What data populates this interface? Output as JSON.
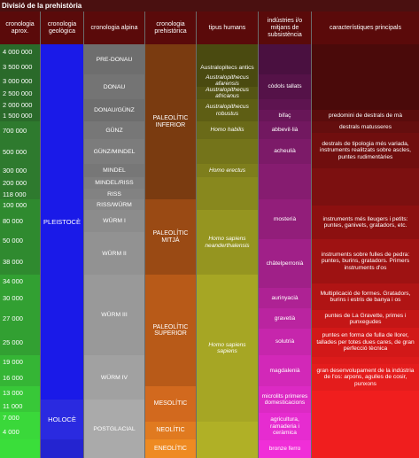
{
  "title": "Divisió de la prehistòria",
  "headers": {
    "aprox": "cronologia aprox.",
    "geologica": "cronologia geològica",
    "alpina": "cronologia alpina",
    "prehistorica": "cronologia prehistòrica",
    "humans": "tipus humans",
    "industries": "indústries i/o mitjans de subsistència",
    "caracteristiques": "característiques principals"
  },
  "dates": [
    "4 000 000",
    "3 500 000",
    "3 000 000",
    "2 500 000",
    "2 000 000",
    "1 500 000",
    "700 000",
    "500 000",
    "300 000",
    "200 000",
    "118 000",
    "100 000",
    "80 000",
    "50 000",
    "38 000",
    "34 000",
    "30 000",
    "27 000",
    "25 000",
    "19 000",
    "16 000",
    "13 000",
    "11 000",
    "7 000",
    "4 000"
  ],
  "geologica": {
    "pleistoce": "PLEISTOCÈ",
    "holoce": "HOLOCÈ"
  },
  "alpina": {
    "predonau": "PRE-DONAU",
    "donau": "DONAU",
    "donau_gunz": "DONAU/GÜNZ",
    "gunz": "GÜNZ",
    "gunz_mindel": "GÜNZ/MINDEL",
    "mindel": "MINDEL",
    "mindel_riss": "MINDEL/RISS",
    "riss": "RISS",
    "riss_wurm": "RISS/WÜRM",
    "wurm1": "WÜRM I",
    "wurm2": "WÜRM II",
    "wurm3": "WÜRM III",
    "wurm4": "WÜRM IV",
    "postglacial": "POSTGLACIAL"
  },
  "prehistorica": {
    "inferior": "PALEOLÍTIC INFERIOR",
    "mitja": "PALEOLÍTIC MITJÀ",
    "superior": "PALEOLÍTIC SUPERIOR",
    "mesolitic": "MESOLÍTIC",
    "neolitic": "NEOLÍTIC",
    "eneolitic": "ENEOLÍTIC"
  },
  "humans": {
    "antics_1": "Australopitecs antics",
    "antics_2": "Australopithecus afarensis",
    "africanus": "Australopithecus africanus",
    "robustus": "Australopithecus robustus",
    "habilis": "Homo habilis",
    "erectus": "Homo erectus",
    "neander": "Homo sapiens neanderthalensis",
    "sapiens": "Homo sapiens sapiens"
  },
  "industries": {
    "codols": "còdols tallats",
    "bifac": "bifaç",
    "abbevil": "abbevil·lià",
    "acheulia": "acheulià",
    "mosteria": "mosterià",
    "chatel": "châtelperronià",
    "aurinya": "aurinyacià",
    "graveta": "gravetià",
    "solutria": "solutrià",
    "magdalenia": "magdalenià",
    "microlits": "microlits primeres domesticacions",
    "agricultura": "agricultura, ramaderia i ceràmica",
    "bronze": "bronze ferro"
  },
  "caracteristiques": {
    "c1": "predomini de destrals de mà",
    "c2": "destrals matusseres",
    "c3": "destrals de tipologia més variada, instruments realitzats sobre ascles, puntes rudimentàries",
    "c4": "instruments més lleugers i petits: puntes, ganivets, gratadors, etc.",
    "c5": "instruments sobre fulles de pedra: puntes, burins, gratadors. Primers instruments d'os",
    "c6": "Multiplicació de formes. Gratadors, burins i estris de banya i os",
    "c7": "puntes de La Gravette, primes i punxegudes",
    "c8": "puntes en forma de fulla de llorer, tallades per totes dues cares, de gran perfecció tècnica",
    "c9": "gran desenvolupament de la indústria de l'os: arpons, agulles de cosir, punxons"
  }
}
